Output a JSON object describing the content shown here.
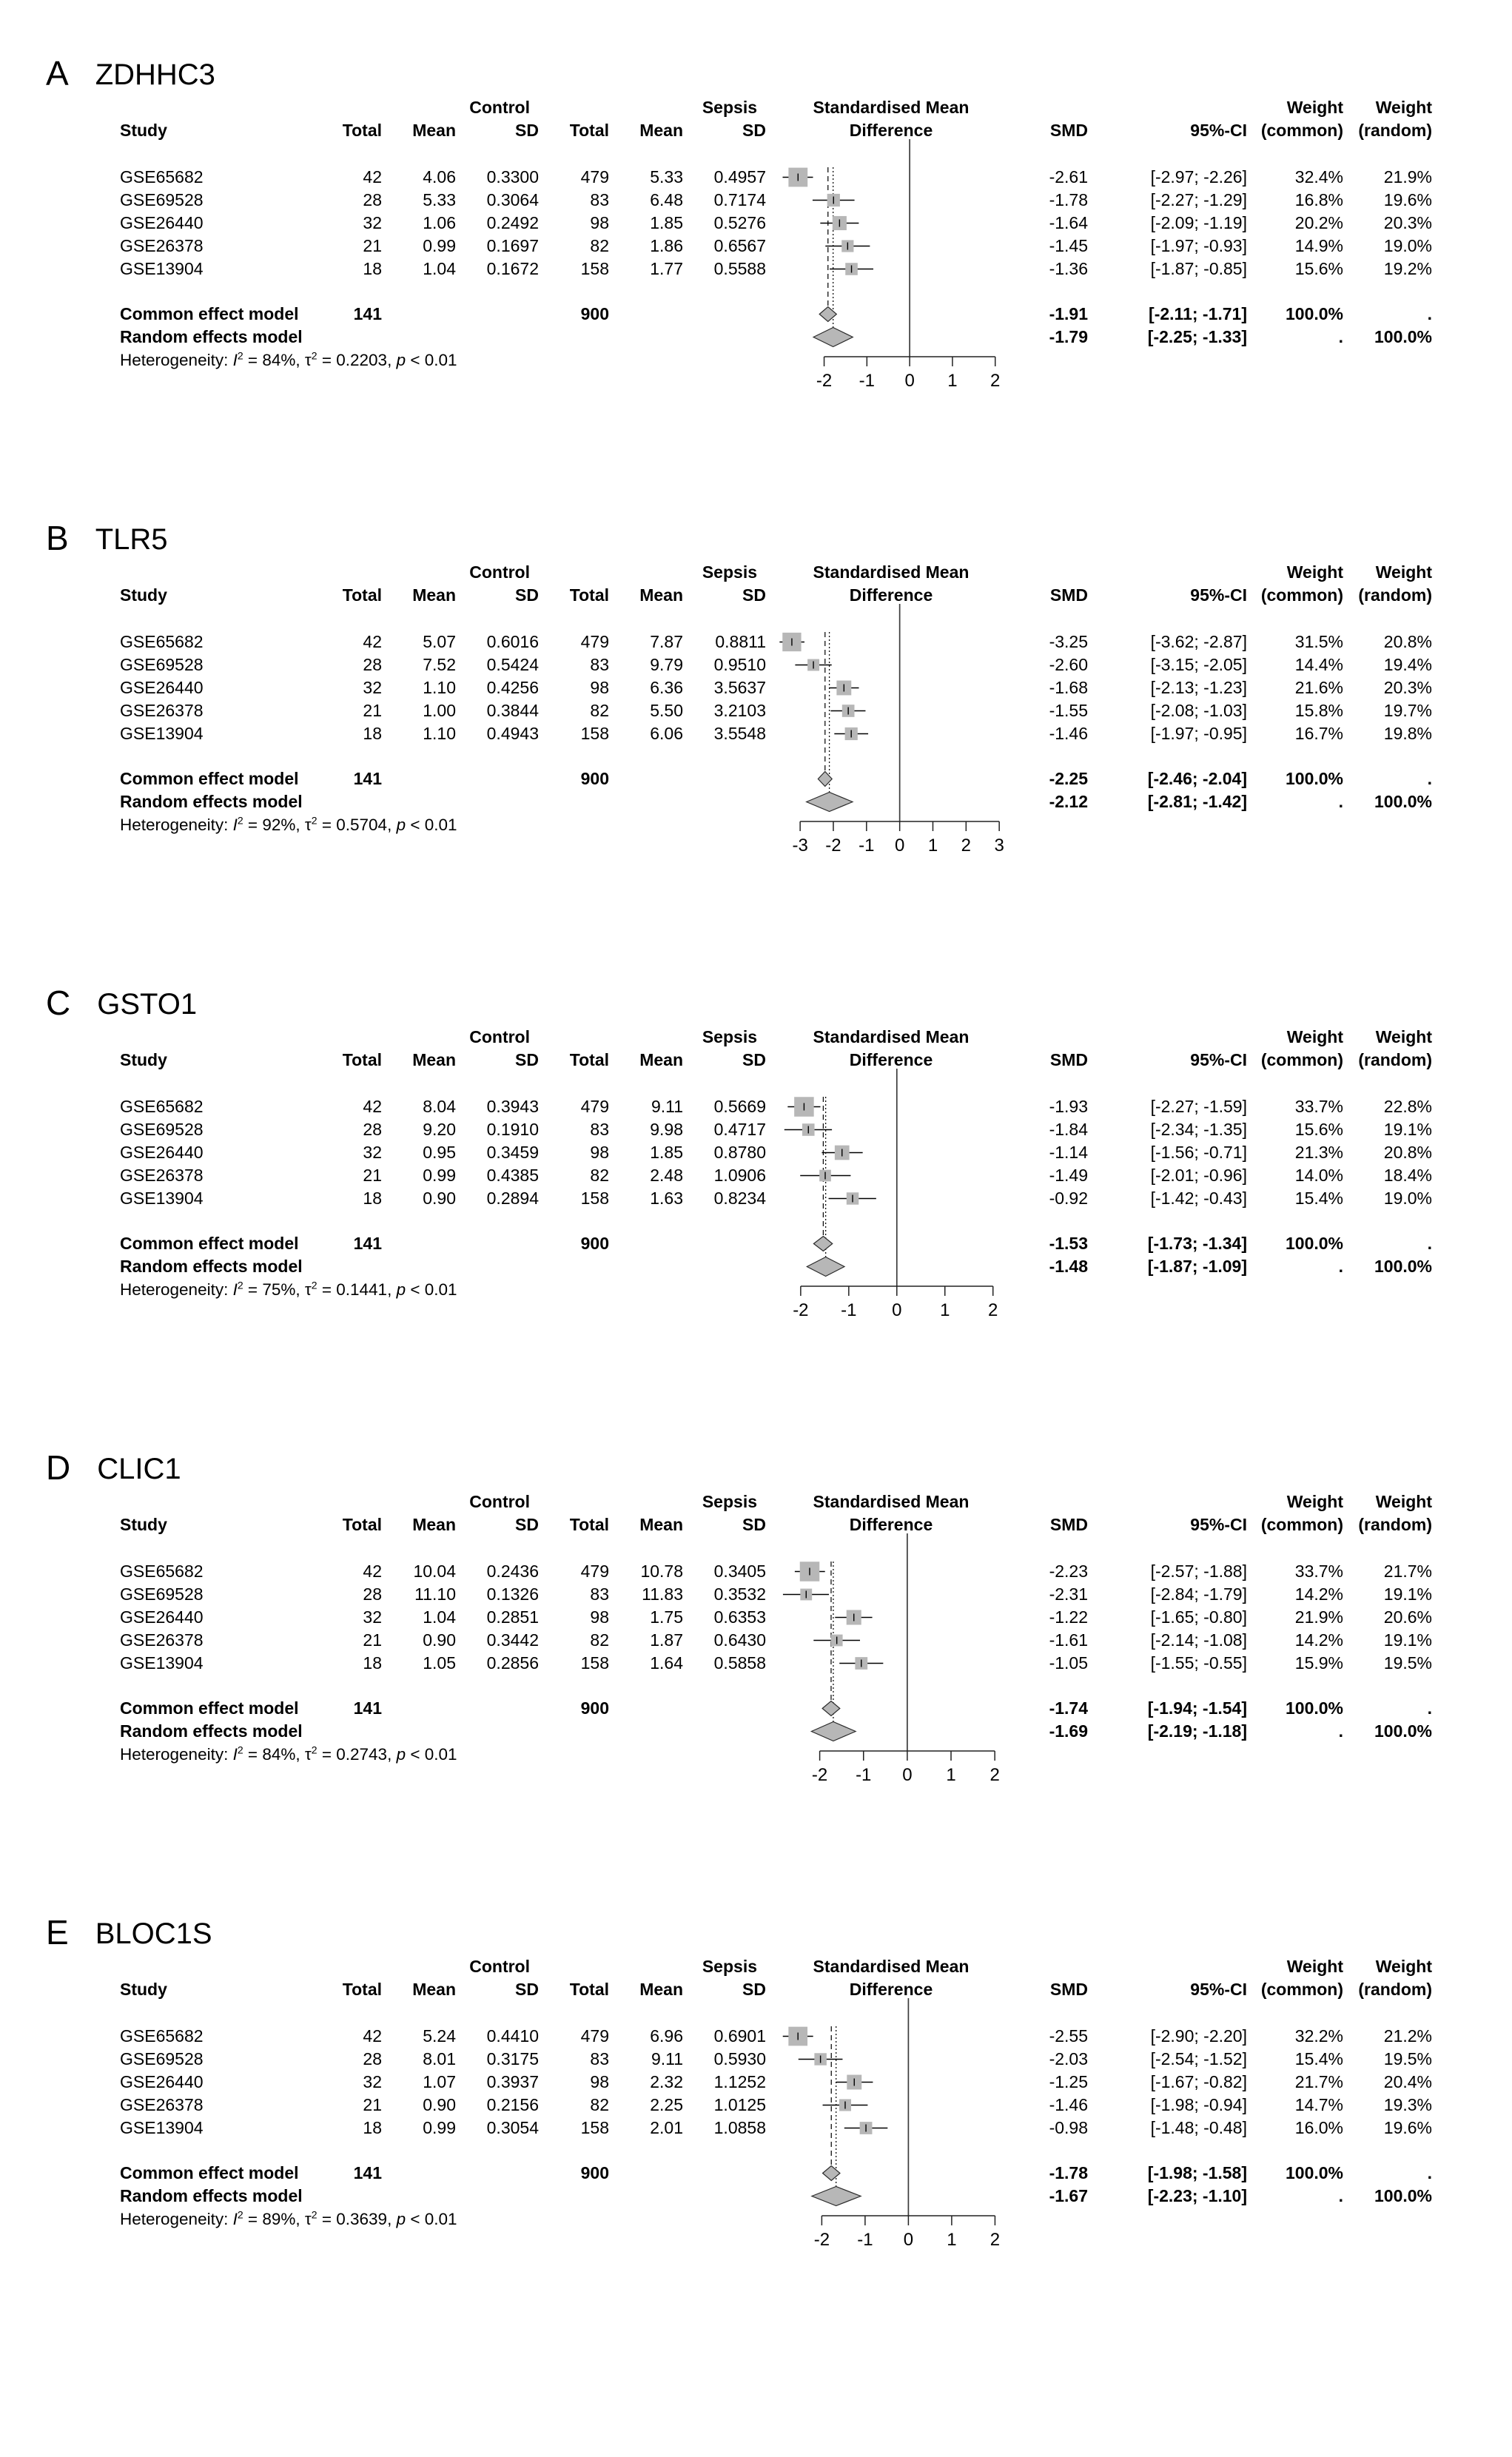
{
  "headers": {
    "control": "Control",
    "sepsis": "Sepsis",
    "study": "Study",
    "total": "Total",
    "mean": "Mean",
    "sd": "SD",
    "smd1": "Standardised Mean",
    "smd2": "Difference",
    "smd": "SMD",
    "ci": "95%-CI",
    "weight": "Weight",
    "w_common": "(common)",
    "w_random": "(random)"
  },
  "labels": {
    "common_label": "Common effect model",
    "random_label": "Random effects model",
    "het_prefix": "Heterogeneity:",
    "i_sym": "I",
    "tau_sym": "τ",
    "p_sym": "p",
    "sup2": "2",
    "eq": " = ",
    "comma": ", "
  },
  "chart_data": [
    {
      "type": "forest",
      "panel_letter": "A",
      "title": "ZDHHC3",
      "axis_min": -2,
      "axis_max": 2,
      "axis_ticks": [
        -2,
        -1,
        0,
        1,
        2
      ],
      "studies": [
        {
          "study": "GSE65682",
          "c_total": "42",
          "c_mean": "4.06",
          "c_sd": "0.3300",
          "s_total": "479",
          "s_mean": "5.33",
          "s_sd": "0.4957",
          "smd": -2.61,
          "ci_lo": -2.97,
          "ci_hi": -2.26,
          "smd_text": "-2.61",
          "ci_text": "[-2.97; -2.26]",
          "w_common": "32.4%",
          "w_random": "21.9%"
        },
        {
          "study": "GSE69528",
          "c_total": "28",
          "c_mean": "5.33",
          "c_sd": "0.3064",
          "s_total": "83",
          "s_mean": "6.48",
          "s_sd": "0.7174",
          "smd": -1.78,
          "ci_lo": -2.27,
          "ci_hi": -1.29,
          "smd_text": "-1.78",
          "ci_text": "[-2.27; -1.29]",
          "w_common": "16.8%",
          "w_random": "19.6%"
        },
        {
          "study": "GSE26440",
          "c_total": "32",
          "c_mean": "1.06",
          "c_sd": "0.2492",
          "s_total": "98",
          "s_mean": "1.85",
          "s_sd": "0.5276",
          "smd": -1.64,
          "ci_lo": -2.09,
          "ci_hi": -1.19,
          "smd_text": "-1.64",
          "ci_text": "[-2.09; -1.19]",
          "w_common": "20.2%",
          "w_random": "20.3%"
        },
        {
          "study": "GSE26378",
          "c_total": "21",
          "c_mean": "0.99",
          "c_sd": "0.1697",
          "s_total": "82",
          "s_mean": "1.86",
          "s_sd": "0.6567",
          "smd": -1.45,
          "ci_lo": -1.97,
          "ci_hi": -0.93,
          "smd_text": "-1.45",
          "ci_text": "[-1.97; -0.93]",
          "w_common": "14.9%",
          "w_random": "19.0%"
        },
        {
          "study": "GSE13904",
          "c_total": "18",
          "c_mean": "1.04",
          "c_sd": "0.1672",
          "s_total": "158",
          "s_mean": "1.77",
          "s_sd": "0.5588",
          "smd": -1.36,
          "ci_lo": -1.87,
          "ci_hi": -0.85,
          "smd_text": "-1.36",
          "ci_text": "[-1.87; -0.85]",
          "w_common": "15.6%",
          "w_random": "19.2%"
        }
      ],
      "common": {
        "total": "141",
        "s_total": "900",
        "smd": -1.91,
        "ci_lo": -2.11,
        "ci_hi": -1.71,
        "smd_text": "-1.91",
        "ci_text": "[-2.11; -1.71]",
        "w_common": "100.0%",
        "w_random": "."
      },
      "random": {
        "smd": -1.79,
        "ci_lo": -2.25,
        "ci_hi": -1.33,
        "smd_text": "-1.79",
        "ci_text": "[-2.25; -1.33]",
        "w_common": ".",
        "w_random": "100.0%"
      },
      "heterogeneity": {
        "i2": "84%",
        "tau2": "0.2203",
        "p": "< 0.01"
      }
    },
    {
      "type": "forest",
      "panel_letter": "B",
      "title": "TLR5",
      "axis_min": -3,
      "axis_max": 3,
      "axis_ticks": [
        -3,
        -2,
        -1,
        0,
        1,
        2,
        3
      ],
      "studies": [
        {
          "study": "GSE65682",
          "c_total": "42",
          "c_mean": "5.07",
          "c_sd": "0.6016",
          "s_total": "479",
          "s_mean": "7.87",
          "s_sd": "0.8811",
          "smd": -3.25,
          "ci_lo": -3.62,
          "ci_hi": -2.87,
          "smd_text": "-3.25",
          "ci_text": "[-3.62; -2.87]",
          "w_common": "31.5%",
          "w_random": "20.8%"
        },
        {
          "study": "GSE69528",
          "c_total": "28",
          "c_mean": "7.52",
          "c_sd": "0.5424",
          "s_total": "83",
          "s_mean": "9.79",
          "s_sd": "0.9510",
          "smd": -2.6,
          "ci_lo": -3.15,
          "ci_hi": -2.05,
          "smd_text": "-2.60",
          "ci_text": "[-3.15; -2.05]",
          "w_common": "14.4%",
          "w_random": "19.4%"
        },
        {
          "study": "GSE26440",
          "c_total": "32",
          "c_mean": "1.10",
          "c_sd": "0.4256",
          "s_total": "98",
          "s_mean": "6.36",
          "s_sd": "3.5637",
          "smd": -1.68,
          "ci_lo": -2.13,
          "ci_hi": -1.23,
          "smd_text": "-1.68",
          "ci_text": "[-2.13; -1.23]",
          "w_common": "21.6%",
          "w_random": "20.3%"
        },
        {
          "study": "GSE26378",
          "c_total": "21",
          "c_mean": "1.00",
          "c_sd": "0.3844",
          "s_total": "82",
          "s_mean": "5.50",
          "s_sd": "3.2103",
          "smd": -1.55,
          "ci_lo": -2.08,
          "ci_hi": -1.03,
          "smd_text": "-1.55",
          "ci_text": "[-2.08; -1.03]",
          "w_common": "15.8%",
          "w_random": "19.7%"
        },
        {
          "study": "GSE13904",
          "c_total": "18",
          "c_mean": "1.10",
          "c_sd": "0.4943",
          "s_total": "158",
          "s_mean": "6.06",
          "s_sd": "3.5548",
          "smd": -1.46,
          "ci_lo": -1.97,
          "ci_hi": -0.95,
          "smd_text": "-1.46",
          "ci_text": "[-1.97; -0.95]",
          "w_common": "16.7%",
          "w_random": "19.8%"
        }
      ],
      "common": {
        "total": "141",
        "s_total": "900",
        "smd": -2.25,
        "ci_lo": -2.46,
        "ci_hi": -2.04,
        "smd_text": "-2.25",
        "ci_text": "[-2.46; -2.04]",
        "w_common": "100.0%",
        "w_random": "."
      },
      "random": {
        "smd": -2.12,
        "ci_lo": -2.81,
        "ci_hi": -1.42,
        "smd_text": "-2.12",
        "ci_text": "[-2.81; -1.42]",
        "w_common": ".",
        "w_random": "100.0%"
      },
      "heterogeneity": {
        "i2": "92%",
        "tau2": "0.5704",
        "p": "< 0.01"
      }
    },
    {
      "type": "forest",
      "panel_letter": "C",
      "title": "GSTO1",
      "axis_min": -2,
      "axis_max": 2,
      "axis_ticks": [
        -2,
        -1,
        0,
        1,
        2
      ],
      "studies": [
        {
          "study": "GSE65682",
          "c_total": "42",
          "c_mean": "8.04",
          "c_sd": "0.3943",
          "s_total": "479",
          "s_mean": "9.11",
          "s_sd": "0.5669",
          "smd": -1.93,
          "ci_lo": -2.27,
          "ci_hi": -1.59,
          "smd_text": "-1.93",
          "ci_text": "[-2.27; -1.59]",
          "w_common": "33.7%",
          "w_random": "22.8%"
        },
        {
          "study": "GSE69528",
          "c_total": "28",
          "c_mean": "9.20",
          "c_sd": "0.1910",
          "s_total": "83",
          "s_mean": "9.98",
          "s_sd": "0.4717",
          "smd": -1.84,
          "ci_lo": -2.34,
          "ci_hi": -1.35,
          "smd_text": "-1.84",
          "ci_text": "[-2.34; -1.35]",
          "w_common": "15.6%",
          "w_random": "19.1%"
        },
        {
          "study": "GSE26440",
          "c_total": "32",
          "c_mean": "0.95",
          "c_sd": "0.3459",
          "s_total": "98",
          "s_mean": "1.85",
          "s_sd": "0.8780",
          "smd": -1.14,
          "ci_lo": -1.56,
          "ci_hi": -0.71,
          "smd_text": "-1.14",
          "ci_text": "[-1.56; -0.71]",
          "w_common": "21.3%",
          "w_random": "20.8%"
        },
        {
          "study": "GSE26378",
          "c_total": "21",
          "c_mean": "0.99",
          "c_sd": "0.4385",
          "s_total": "82",
          "s_mean": "2.48",
          "s_sd": "1.0906",
          "smd": -1.49,
          "ci_lo": -2.01,
          "ci_hi": -0.96,
          "smd_text": "-1.49",
          "ci_text": "[-2.01; -0.96]",
          "w_common": "14.0%",
          "w_random": "18.4%"
        },
        {
          "study": "GSE13904",
          "c_total": "18",
          "c_mean": "0.90",
          "c_sd": "0.2894",
          "s_total": "158",
          "s_mean": "1.63",
          "s_sd": "0.8234",
          "smd": -0.92,
          "ci_lo": -1.42,
          "ci_hi": -0.43,
          "smd_text": "-0.92",
          "ci_text": "[-1.42; -0.43]",
          "w_common": "15.4%",
          "w_random": "19.0%"
        }
      ],
      "common": {
        "total": "141",
        "s_total": "900",
        "smd": -1.53,
        "ci_lo": -1.73,
        "ci_hi": -1.34,
        "smd_text": "-1.53",
        "ci_text": "[-1.73; -1.34]",
        "w_common": "100.0%",
        "w_random": "."
      },
      "random": {
        "smd": -1.48,
        "ci_lo": -1.87,
        "ci_hi": -1.09,
        "smd_text": "-1.48",
        "ci_text": "[-1.87; -1.09]",
        "w_common": ".",
        "w_random": "100.0%"
      },
      "heterogeneity": {
        "i2": "75%",
        "tau2": "0.1441",
        "p": "< 0.01"
      }
    },
    {
      "type": "forest",
      "panel_letter": "D",
      "title": "CLIC1",
      "axis_min": -2,
      "axis_max": 2,
      "axis_ticks": [
        -2,
        -1,
        0,
        1,
        2
      ],
      "studies": [
        {
          "study": "GSE65682",
          "c_total": "42",
          "c_mean": "10.04",
          "c_sd": "0.2436",
          "s_total": "479",
          "s_mean": "10.78",
          "s_sd": "0.3405",
          "smd": -2.23,
          "ci_lo": -2.57,
          "ci_hi": -1.88,
          "smd_text": "-2.23",
          "ci_text": "[-2.57; -1.88]",
          "w_common": "33.7%",
          "w_random": "21.7%"
        },
        {
          "study": "GSE69528",
          "c_total": "28",
          "c_mean": "11.10",
          "c_sd": "0.1326",
          "s_total": "83",
          "s_mean": "11.83",
          "s_sd": "0.3532",
          "smd": -2.31,
          "ci_lo": -2.84,
          "ci_hi": -1.79,
          "smd_text": "-2.31",
          "ci_text": "[-2.84; -1.79]",
          "w_common": "14.2%",
          "w_random": "19.1%"
        },
        {
          "study": "GSE26440",
          "c_total": "32",
          "c_mean": "1.04",
          "c_sd": "0.2851",
          "s_total": "98",
          "s_mean": "1.75",
          "s_sd": "0.6353",
          "smd": -1.22,
          "ci_lo": -1.65,
          "ci_hi": -0.8,
          "smd_text": "-1.22",
          "ci_text": "[-1.65; -0.80]",
          "w_common": "21.9%",
          "w_random": "20.6%"
        },
        {
          "study": "GSE26378",
          "c_total": "21",
          "c_mean": "0.90",
          "c_sd": "0.3442",
          "s_total": "82",
          "s_mean": "1.87",
          "s_sd": "0.6430",
          "smd": -1.61,
          "ci_lo": -2.14,
          "ci_hi": -1.08,
          "smd_text": "-1.61",
          "ci_text": "[-2.14; -1.08]",
          "w_common": "14.2%",
          "w_random": "19.1%"
        },
        {
          "study": "GSE13904",
          "c_total": "18",
          "c_mean": "1.05",
          "c_sd": "0.2856",
          "s_total": "158",
          "s_mean": "1.64",
          "s_sd": "0.5858",
          "smd": -1.05,
          "ci_lo": -1.55,
          "ci_hi": -0.55,
          "smd_text": "-1.05",
          "ci_text": "[-1.55; -0.55]",
          "w_common": "15.9%",
          "w_random": "19.5%"
        }
      ],
      "common": {
        "total": "141",
        "s_total": "900",
        "smd": -1.74,
        "ci_lo": -1.94,
        "ci_hi": -1.54,
        "smd_text": "-1.74",
        "ci_text": "[-1.94; -1.54]",
        "w_common": "100.0%",
        "w_random": "."
      },
      "random": {
        "smd": -1.69,
        "ci_lo": -2.19,
        "ci_hi": -1.18,
        "smd_text": "-1.69",
        "ci_text": "[-2.19; -1.18]",
        "w_common": ".",
        "w_random": "100.0%"
      },
      "heterogeneity": {
        "i2": "84%",
        "tau2": "0.2743",
        "p": "< 0.01"
      }
    },
    {
      "type": "forest",
      "panel_letter": "E",
      "title": "BLOC1S",
      "axis_min": -2,
      "axis_max": 2,
      "axis_ticks": [
        -2,
        -1,
        0,
        1,
        2
      ],
      "studies": [
        {
          "study": "GSE65682",
          "c_total": "42",
          "c_mean": "5.24",
          "c_sd": "0.4410",
          "s_total": "479",
          "s_mean": "6.96",
          "s_sd": "0.6901",
          "smd": -2.55,
          "ci_lo": -2.9,
          "ci_hi": -2.2,
          "smd_text": "-2.55",
          "ci_text": "[-2.90; -2.20]",
          "w_common": "32.2%",
          "w_random": "21.2%"
        },
        {
          "study": "GSE69528",
          "c_total": "28",
          "c_mean": "8.01",
          "c_sd": "0.3175",
          "s_total": "83",
          "s_mean": "9.11",
          "s_sd": "0.5930",
          "smd": -2.03,
          "ci_lo": -2.54,
          "ci_hi": -1.52,
          "smd_text": "-2.03",
          "ci_text": "[-2.54; -1.52]",
          "w_common": "15.4%",
          "w_random": "19.5%"
        },
        {
          "study": "GSE26440",
          "c_total": "32",
          "c_mean": "1.07",
          "c_sd": "0.3937",
          "s_total": "98",
          "s_mean": "2.32",
          "s_sd": "1.1252",
          "smd": -1.25,
          "ci_lo": -1.67,
          "ci_hi": -0.82,
          "smd_text": "-1.25",
          "ci_text": "[-1.67; -0.82]",
          "w_common": "21.7%",
          "w_random": "20.4%"
        },
        {
          "study": "GSE26378",
          "c_total": "21",
          "c_mean": "0.90",
          "c_sd": "0.2156",
          "s_total": "82",
          "s_mean": "2.25",
          "s_sd": "1.0125",
          "smd": -1.46,
          "ci_lo": -1.98,
          "ci_hi": -0.94,
          "smd_text": "-1.46",
          "ci_text": "[-1.98; -0.94]",
          "w_common": "14.7%",
          "w_random": "19.3%"
        },
        {
          "study": "GSE13904",
          "c_total": "18",
          "c_mean": "0.99",
          "c_sd": "0.3054",
          "s_total": "158",
          "s_mean": "2.01",
          "s_sd": "1.0858",
          "smd": -0.98,
          "ci_lo": -1.48,
          "ci_hi": -0.48,
          "smd_text": "-0.98",
          "ci_text": "[-1.48; -0.48]",
          "w_common": "16.0%",
          "w_random": "19.6%"
        }
      ],
      "common": {
        "total": "141",
        "s_total": "900",
        "smd": -1.78,
        "ci_lo": -1.98,
        "ci_hi": -1.58,
        "smd_text": "-1.78",
        "ci_text": "[-1.98; -1.58]",
        "w_common": "100.0%",
        "w_random": "."
      },
      "random": {
        "smd": -1.67,
        "ci_lo": -2.23,
        "ci_hi": -1.1,
        "smd_text": "-1.67",
        "ci_text": "[-2.23; -1.10]",
        "w_common": ".",
        "w_random": "100.0%"
      },
      "heterogeneity": {
        "i2": "89%",
        "tau2": "0.3639",
        "p": "< 0.01"
      }
    }
  ]
}
